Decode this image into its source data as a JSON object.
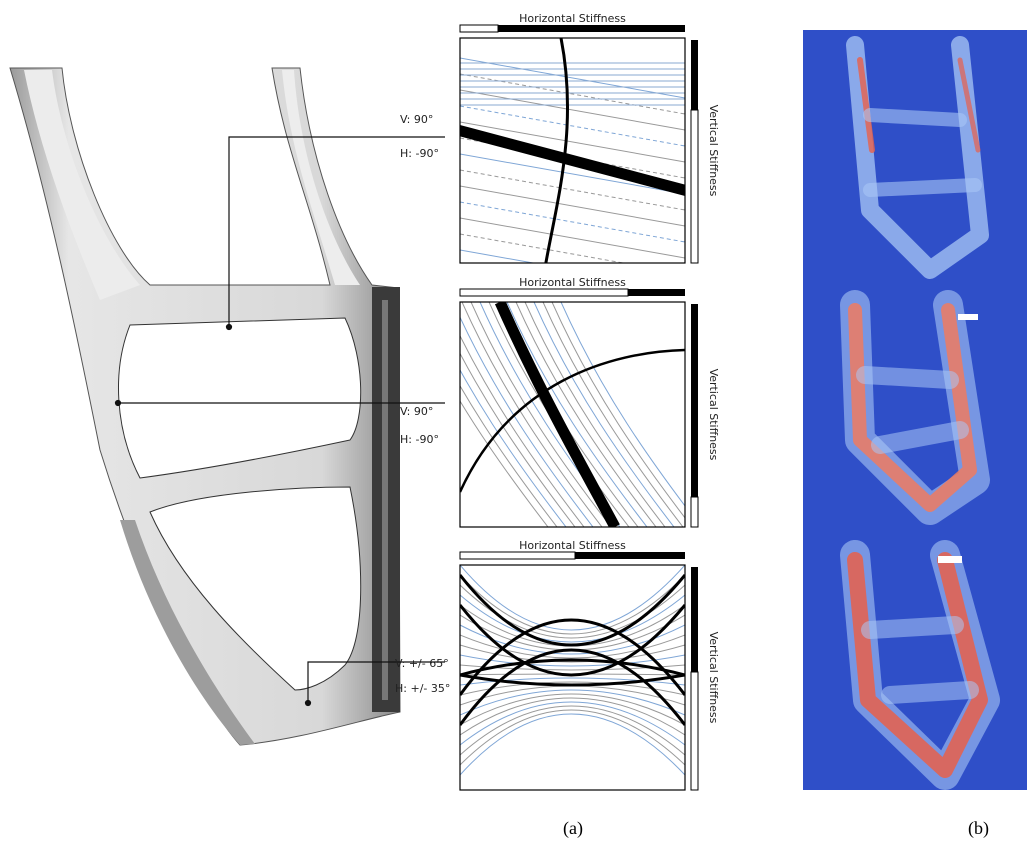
{
  "annotations": [
    {
      "vertical": "V:  90°",
      "horizontal": "H: -90°"
    },
    {
      "vertical": "V:  90°",
      "horizontal": "H: -90°"
    },
    {
      "vertical": "V: +/- 65°",
      "horizontal": "H: +/- 35°"
    }
  ],
  "panels": [
    {
      "horizontal_label": "Horizontal Stiffness",
      "vertical_label": "Vertical Stiffness"
    },
    {
      "horizontal_label": "Horizontal Stiffness",
      "vertical_label": "Vertical Stiffness"
    },
    {
      "horizontal_label": "Horizontal Stiffness",
      "vertical_label": "Vertical Stiffness"
    }
  ],
  "captions": [
    "(a)",
    "(b)"
  ]
}
